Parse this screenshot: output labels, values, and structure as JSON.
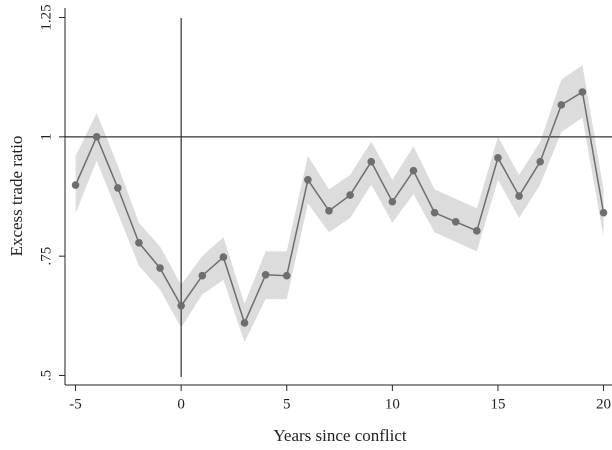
{
  "chart_data": {
    "type": "line",
    "x_label": "Years since conflict",
    "y_label": "Excess trade ratio",
    "x": [
      -5,
      -4,
      -3,
      -2,
      -1,
      0,
      1,
      2,
      3,
      4,
      5,
      6,
      7,
      8,
      9,
      10,
      11,
      12,
      13,
      14,
      15,
      16,
      17,
      18,
      19,
      20
    ],
    "values": [
      0.899,
      1.0,
      0.893,
      0.778,
      0.725,
      0.646,
      0.709,
      0.748,
      0.61,
      0.711,
      0.709,
      0.91,
      0.845,
      0.878,
      0.948,
      0.864,
      0.929,
      0.841,
      0.822,
      0.803,
      0.956,
      0.876,
      0.948,
      1.067,
      1.094,
      0.841
    ],
    "upper": [
      0.96,
      1.05,
      0.94,
      0.82,
      0.77,
      0.69,
      0.75,
      0.79,
      0.65,
      0.76,
      0.76,
      0.96,
      0.89,
      0.92,
      0.99,
      0.91,
      0.98,
      0.89,
      0.87,
      0.85,
      1.0,
      0.92,
      0.99,
      1.12,
      1.15,
      0.89
    ],
    "lower": [
      0.84,
      0.95,
      0.84,
      0.73,
      0.68,
      0.6,
      0.67,
      0.7,
      0.57,
      0.66,
      0.66,
      0.86,
      0.8,
      0.83,
      0.9,
      0.82,
      0.88,
      0.8,
      0.78,
      0.76,
      0.91,
      0.83,
      0.9,
      1.01,
      1.04,
      0.79
    ],
    "color": "#6e6e6e",
    "band_color": "#dcdcdc",
    "xlim": [
      -5.5,
      20.4
    ],
    "ylim": [
      0.48,
      1.27
    ],
    "xticks": [
      -5,
      0,
      5,
      10,
      15,
      20
    ],
    "yticks": [
      {
        "value": 0.5,
        "label": ".5"
      },
      {
        "value": 0.75,
        "label": ".75"
      },
      1,
      1.25
    ],
    "hline": 1,
    "vline": 0
  }
}
